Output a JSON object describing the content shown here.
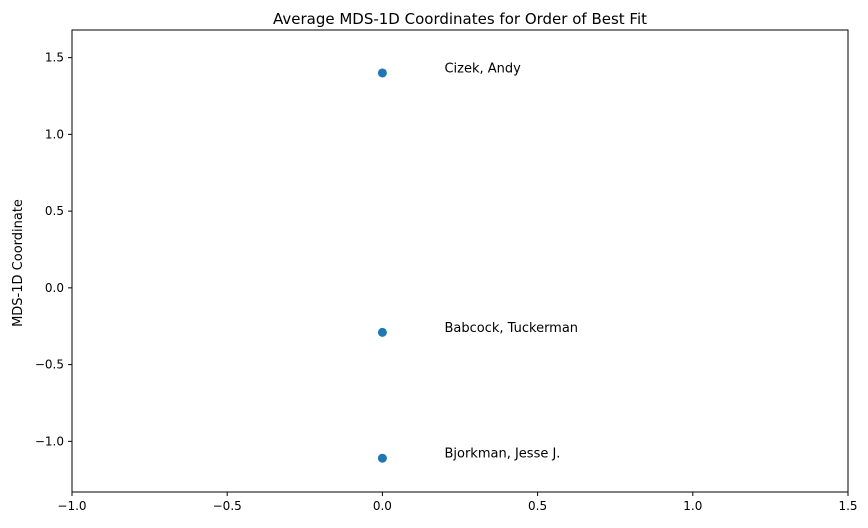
{
  "chart_data": {
    "type": "scatter",
    "title": "Average MDS-1D Coordinates for Order of Best Fit",
    "xlabel": "",
    "ylabel": "MDS-1D Coordinate",
    "xlim": [
      -1.0,
      1.5
    ],
    "ylim": [
      -1.33,
      1.68
    ],
    "xticks": [
      -1.0,
      -0.5,
      0.0,
      0.5,
      1.0,
      1.5
    ],
    "xtick_labels": [
      "−1.0",
      "−0.5",
      "0.0",
      "0.5",
      "1.0",
      "1.5"
    ],
    "yticks": [
      -1.0,
      -0.5,
      0.0,
      0.5,
      1.0,
      1.5
    ],
    "ytick_labels": [
      "−1.0",
      "−0.5",
      "0.0",
      "0.5",
      "1.0",
      "1.5"
    ],
    "grid": false,
    "marker_color": "#1f77b4",
    "points": [
      {
        "x": 0.0,
        "y": 1.4,
        "label": "Cizek, Andy"
      },
      {
        "x": 0.0,
        "y": -0.29,
        "label": "Babcock, Tuckerman"
      },
      {
        "x": 0.0,
        "y": -1.11,
        "label": "Bjorkman, Jesse J."
      }
    ],
    "label_offset_x": 0.2,
    "label_offset_y": 0.03
  }
}
